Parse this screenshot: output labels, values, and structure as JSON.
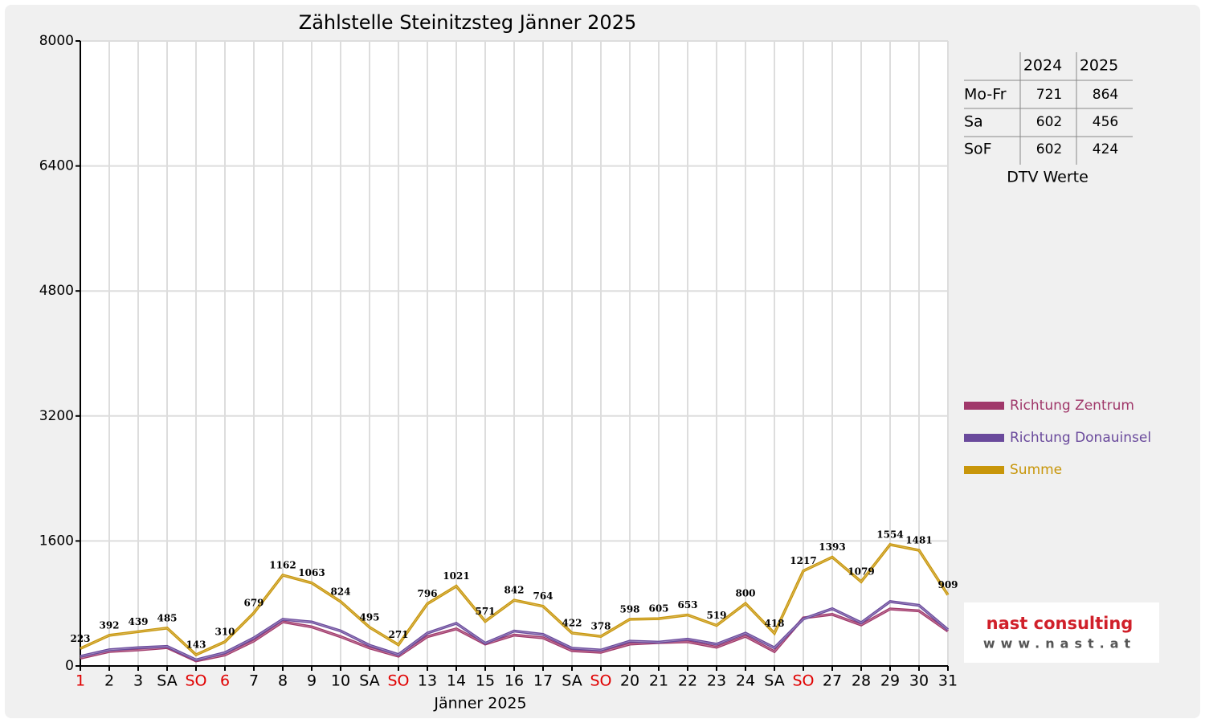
{
  "chart_data": {
    "type": "line",
    "title": "Zählstelle Steinitzsteg Jänner 2025",
    "x_label": "Jänner 2025",
    "categories": [
      "1",
      "2",
      "3",
      "SA",
      "SO",
      "6",
      "7",
      "8",
      "9",
      "10",
      "SA",
      "SO",
      "13",
      "14",
      "15",
      "16",
      "17",
      "SA",
      "SO",
      "20",
      "21",
      "22",
      "23",
      "24",
      "SA",
      "SO",
      "27",
      "28",
      "29",
      "30",
      "31"
    ],
    "category_colors": [
      "#e00000",
      "#000000",
      "#000000",
      "#000000",
      "#e00000",
      "#e00000",
      "#000000",
      "#000000",
      "#000000",
      "#000000",
      "#000000",
      "#e00000",
      "#000000",
      "#000000",
      "#000000",
      "#000000",
      "#000000",
      "#000000",
      "#e00000",
      "#000000",
      "#000000",
      "#000000",
      "#000000",
      "#000000",
      "#000000",
      "#e00000",
      "#000000",
      "#000000",
      "#000000",
      "#000000",
      "#000000"
    ],
    "series": [
      {
        "name": "Richtung Zentrum",
        "color": "#a0386a",
        "values": [
          100,
          185,
          205,
          235,
          65,
          140,
          320,
          565,
          500,
          375,
          230,
          125,
          375,
          475,
          280,
          395,
          360,
          195,
          175,
          280,
          300,
          310,
          240,
          380,
          185,
          615,
          660,
          525,
          730,
          705,
          445
        ]
      },
      {
        "name": "Richtung Donauinsel",
        "color": "#6a4a9c",
        "values": [
          123,
          207,
          234,
          250,
          78,
          170,
          359,
          597,
          563,
          449,
          265,
          146,
          421,
          546,
          291,
          447,
          404,
          227,
          203,
          318,
          305,
          343,
          279,
          420,
          233,
          602,
          733,
          554,
          824,
          776,
          464
        ]
      },
      {
        "name": "Summe",
        "color": "#c8960a",
        "data_labels": true,
        "values": [
          223,
          392,
          439,
          485,
          143,
          310,
          679,
          1162,
          1063,
          824,
          495,
          271,
          796,
          1021,
          571,
          842,
          764,
          422,
          378,
          598,
          605,
          653,
          519,
          800,
          418,
          1217,
          1393,
          1079,
          1554,
          1481,
          909
        ]
      }
    ],
    "ylim": [
      0,
      8000
    ],
    "yticks": [
      0,
      1600,
      3200,
      4800,
      6400,
      8000
    ],
    "grid": true,
    "legend": "right"
  },
  "dtv_table": {
    "columns": [
      "2024",
      "2025"
    ],
    "rows": [
      {
        "label": "Mo-Fr",
        "values": [
          721,
          864
        ]
      },
      {
        "label": "Sa",
        "values": [
          602,
          456
        ]
      },
      {
        "label": "SoF",
        "values": [
          602,
          424
        ]
      }
    ],
    "caption": "DTV Werte"
  },
  "logo": {
    "name": "nast consulting",
    "url": "www.nast.at"
  }
}
